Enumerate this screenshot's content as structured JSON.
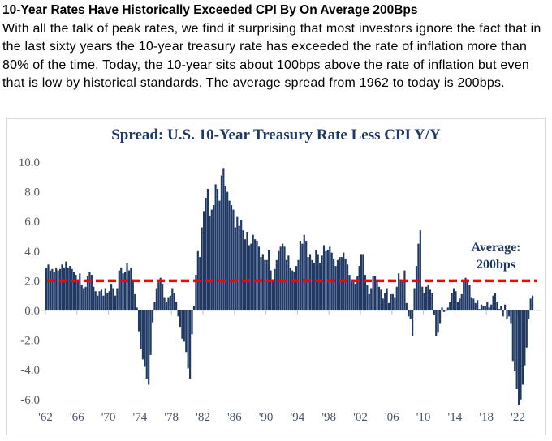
{
  "header": {
    "title": "10-Year Rates Have Historically Exceeded CPI By On Average 200Bps",
    "body": "With all the talk of peak rates, we find it surprising that most investors ignore the fact that in the last sixty years the 10-year treasury rate has exceeded the rate of inflation more than 80% of the time. Today, the 10-year sits about 100bps above the rate of inflation but even that is low by historical standards. The average spread from 1962 to today is 200bps."
  },
  "chart_data": {
    "type": "bar",
    "title": "Spread: U.S. 10-Year Treasury Rate Less CPI Y/Y",
    "xlabel": "",
    "ylabel": "",
    "unit": "percentage points",
    "start_year": 1962,
    "frequency": "quarterly",
    "values": [
      2.9,
      3.1,
      2.7,
      2.8,
      2.6,
      2.9,
      2.7,
      2.8,
      3.1,
      2.9,
      3.3,
      2.9,
      3.0,
      2.8,
      2.6,
      2.4,
      2.1,
      2.5,
      1.7,
      1.5,
      1.6,
      2.3,
      2.6,
      2.4,
      1.6,
      1.3,
      1.0,
      1.3,
      1.4,
      1.0,
      1.5,
      1.2,
      1.3,
      1.8,
      1.5,
      1.0,
      1.5,
      2.7,
      2.9,
      2.5,
      2.6,
      3.2,
      2.7,
      2.9,
      2.1,
      1.1,
      0.2,
      -1.4,
      -2.6,
      -3.3,
      -3.8,
      -4.6,
      -5.0,
      -3.0,
      -0.8,
      0.6,
      1.5,
      1.9,
      2.2,
      1.8,
      0.9,
      0.6,
      0.9,
      1.0,
      1.5,
      1.2,
      0.6,
      -0.4,
      -1.1,
      -1.9,
      -2.1,
      -2.8,
      -3.9,
      -4.6,
      -1.6,
      0.3,
      2.4,
      4.0,
      3.6,
      5.6,
      6.7,
      7.6,
      8.2,
      6.4,
      6.8,
      7.1,
      8.5,
      8.2,
      7.4,
      9.1,
      9.6,
      8.4,
      8.0,
      7.4,
      7.1,
      6.8,
      5.6,
      6.3,
      5.7,
      6.1,
      5.4,
      4.8,
      5.3,
      4.4,
      4.5,
      5.1,
      4.8,
      4.7,
      4.3,
      3.6,
      3.8,
      3.4,
      3.4,
      4.1,
      2.7,
      2.1,
      2.8,
      3.4,
      4.0,
      4.3,
      4.5,
      4.3,
      3.4,
      3.7,
      2.9,
      2.7,
      2.6,
      3.0,
      3.4,
      4.7,
      4.5,
      5.1,
      4.7,
      3.6,
      3.8,
      3.4,
      3.2,
      4.1,
      3.8,
      3.2,
      3.7,
      4.4,
      4.0,
      4.1,
      4.3,
      3.9,
      3.5,
      3.0,
      3.4,
      3.6,
      3.6,
      3.9,
      3.5,
      3.1,
      2.4,
      2.1,
      2.1,
      1.8,
      2.3,
      3.0,
      3.8,
      3.8,
      2.4,
      1.7,
      1.1,
      1.5,
      2.3,
      2.3,
      2.1,
      1.6,
      1.4,
      0.8,
      1.2,
      1.5,
      0.5,
      1.1,
      1.1,
      0.9,
      1.6,
      2.5,
      2.1,
      2.0,
      2.7,
      0.5,
      -0.4,
      -0.6,
      -1.7,
      1.5,
      3.0,
      4.5,
      5.4,
      1.6,
      1.2,
      1.6,
      1.7,
      1.4,
      1.2,
      -0.3,
      -1.7,
      -1.5,
      -0.9,
      0.2,
      -0.1,
      0.0,
      0.2,
      0.6,
      1.2,
      1.5,
      1.3,
      0.6,
      0.8,
      1.1,
      2.0,
      2.2,
      2.1,
      1.7,
      0.9,
      0.8,
      0.5,
      0.7,
      0.1,
      0.4,
      0.3,
      0.3,
      0.6,
      0.2,
      0.4,
      1.0,
      1.2,
      0.6,
      0.1,
      0.3,
      -0.4,
      0.4,
      -0.6,
      -0.4,
      -0.9,
      -3.4,
      -4.1,
      -5.3,
      -6.4,
      -6.0,
      -5.0,
      -3.7,
      -2.5,
      -0.6,
      0.8,
      1.0
    ],
    "y_ticks": [
      10.0,
      8.0,
      6.0,
      4.0,
      2.0,
      0.0,
      -2.0,
      -4.0,
      -6.0
    ],
    "ylim": [
      -6.9,
      10.4
    ],
    "x_tick_years": [
      1962,
      1966,
      1970,
      1974,
      1978,
      1982,
      1986,
      1990,
      1994,
      1998,
      2002,
      2006,
      2010,
      2014,
      2018,
      2022
    ],
    "x_tick_labels": [
      "'62",
      "'66",
      "'70",
      "'74",
      "'78",
      "'82",
      "'86",
      "'90",
      "'94",
      "'98",
      "'02",
      "'06",
      "'10",
      "'14",
      "'18",
      "'22"
    ],
    "average_line": {
      "value": 2.0,
      "color": "#FF0000",
      "style": "dashed"
    },
    "annotation": {
      "line1": "Average:",
      "line2": "200bps"
    },
    "bar_color": "#1F3864",
    "title_color": "#1F3864",
    "axis_color": "#D9D9D9",
    "grid": false,
    "legend_position": "none"
  }
}
